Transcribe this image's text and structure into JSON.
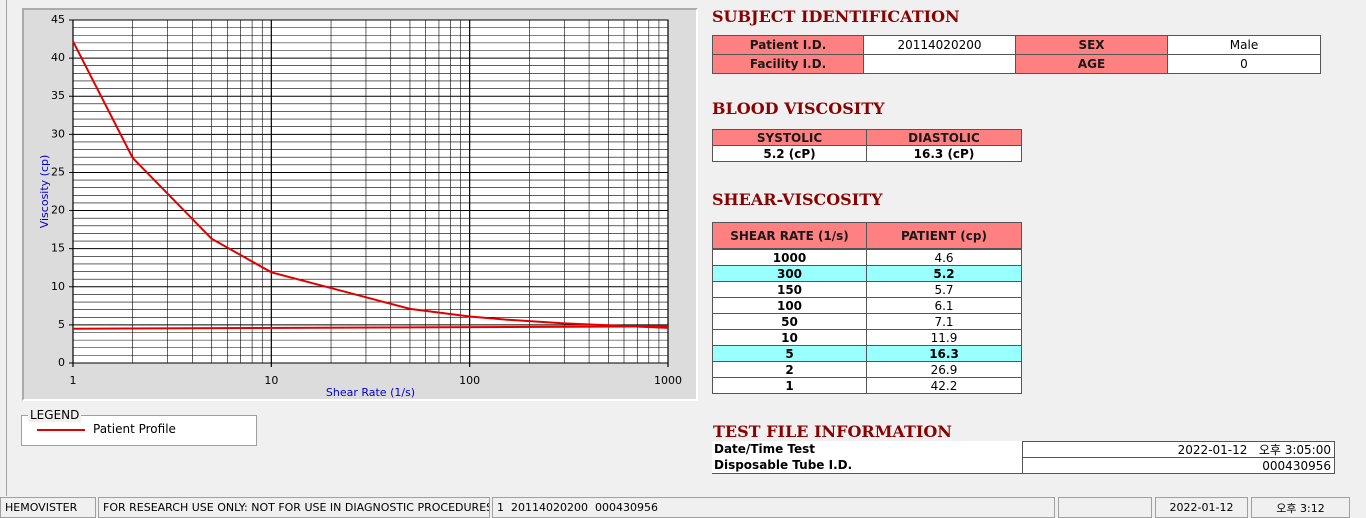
{
  "chart_data": {
    "type": "line",
    "x_label": "Shear Rate (1/s)",
    "y_label": "Viscosity (cp)",
    "xlog": true,
    "grid": true,
    "xlim": [
      1,
      1000
    ],
    "xticks": [
      1,
      10,
      100,
      1000
    ],
    "ylim": [
      0,
      45
    ],
    "yticks": [
      0,
      5,
      10,
      15,
      20,
      25,
      30,
      35,
      40,
      45
    ],
    "series": [
      {
        "name": "Patient Profile",
        "color": "#e00000",
        "x": [
          1,
          2,
          5,
          10,
          50,
          100,
          150,
          300,
          1000
        ],
        "values": [
          42.2,
          26.9,
          16.3,
          11.9,
          7.1,
          6.1,
          5.7,
          5.2,
          4.6
        ]
      },
      {
        "color": "#e00000",
        "x": [
          1,
          1000
        ],
        "values": [
          4.5,
          4.8
        ]
      }
    ]
  },
  "legend": {
    "title": "LEGEND"
  },
  "subject": {
    "title": "SUBJECT IDENTIFICATION",
    "fields": [
      {
        "label": "Patient I.D.",
        "value": "20114020200"
      },
      {
        "label": "SEX",
        "value": "Male"
      },
      {
        "label": "Facility I.D."
      },
      {
        "label": "AGE",
        "value": "0"
      }
    ]
  },
  "blood_viscosity": {
    "title": "BLOOD VISCOSITY",
    "headers": [
      "SYSTOLIC",
      "DIASTOLIC"
    ],
    "values": [
      "5.2 (cP)",
      "16.3 (cP)"
    ]
  },
  "shear_viscosity": {
    "title": "SHEAR-VISCOSITY",
    "headers": [
      "SHEAR RATE (1/s)",
      "PATIENT (cp)"
    ],
    "rows": [
      [
        "1000",
        "4.6"
      ],
      [
        "300",
        "5.2"
      ],
      [
        "150",
        "5.7"
      ],
      [
        "100",
        "6.1"
      ],
      [
        "50",
        "7.1"
      ],
      [
        "10",
        "11.9"
      ],
      [
        "5",
        "16.3"
      ],
      [
        "2",
        "26.9"
      ],
      [
        "1",
        "42.2"
      ]
    ],
    "highlight": [
      1,
      6
    ]
  },
  "test_file": {
    "title": "TEST FILE INFORMATION",
    "rows": [
      [
        "Date/Time Test",
        "2022-01-12   오후 3:05:00"
      ],
      [
        "Disposable Tube I.D.",
        "000430956"
      ]
    ]
  },
  "status_bar": [
    "HEMOVISTER",
    "FOR RESEARCH USE ONLY: NOT FOR USE IN DIAGNOSTIC PROCEDURES",
    "1  20114020200  000430956",
    "2022-01-12",
    "오후 3:12"
  ]
}
